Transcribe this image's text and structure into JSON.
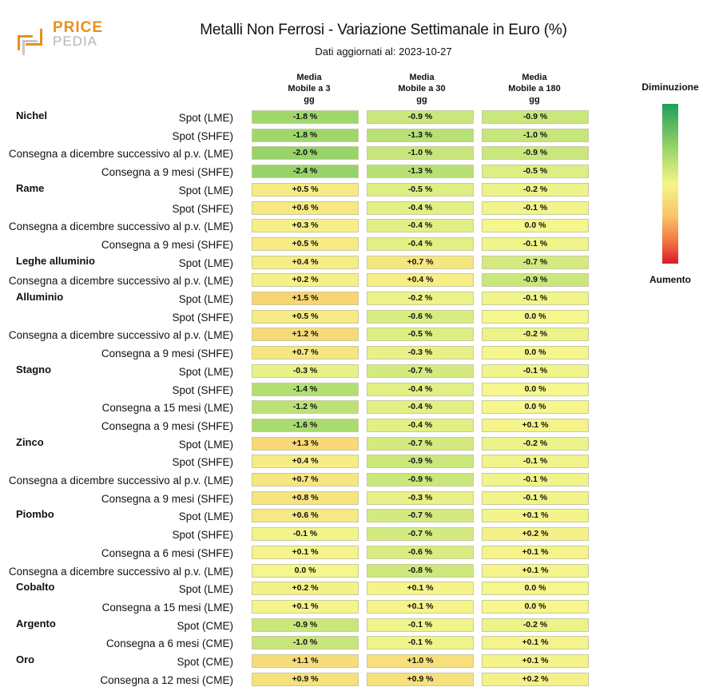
{
  "logo": {
    "word1": "PRICE",
    "word2": "PEDIA"
  },
  "chart_data": {
    "type": "table",
    "title": "Metalli Non Ferrosi - Variazione Settimanale in Euro (%)",
    "subtitle": "Dati aggiornati al: 2023-10-27",
    "columns": [
      "Media\nMobile a 3\ngg",
      "Media\nMobile a 30\ngg",
      "Media\nMobile a 180\ngg"
    ],
    "legend": {
      "top": "Diminuzione",
      "bottom": "Aumento"
    },
    "groups": [
      {
        "name": "Nichel",
        "rows": [
          {
            "label": "Spot (LME)",
            "values": [
              "-1.8 %",
              "-0.9 %",
              "-0.9 %"
            ]
          },
          {
            "label": "Spot (SHFE)",
            "values": [
              "-1.8 %",
              "-1.3 %",
              "-1.0 %"
            ]
          },
          {
            "label": "Consegna a dicembre successivo al p.v. (LME)",
            "values": [
              "-2.0 %",
              "-1.0 %",
              "-0.9 %"
            ]
          },
          {
            "label": "Consegna a 9 mesi (SHFE)",
            "values": [
              "-2.4 %",
              "-1.3 %",
              "-0.5 %"
            ]
          }
        ]
      },
      {
        "name": "Rame",
        "rows": [
          {
            "label": "Spot (LME)",
            "values": [
              "+0.5 %",
              "-0.5 %",
              "-0.2 %"
            ]
          },
          {
            "label": "Spot (SHFE)",
            "values": [
              "+0.6 %",
              "-0.4 %",
              "-0.1 %"
            ]
          },
          {
            "label": "Consegna a dicembre successivo al p.v. (LME)",
            "values": [
              "+0.3 %",
              "-0.4 %",
              "0.0 %"
            ]
          },
          {
            "label": "Consegna a 9 mesi (SHFE)",
            "values": [
              "+0.5 %",
              "-0.4 %",
              "-0.1 %"
            ]
          }
        ]
      },
      {
        "name": "Leghe alluminio",
        "rows": [
          {
            "label": "Spot (LME)",
            "values": [
              "+0.4 %",
              "+0.7 %",
              "-0.7 %"
            ]
          },
          {
            "label": "Consegna a dicembre successivo al p.v. (LME)",
            "values": [
              "+0.2 %",
              "+0.4 %",
              "-0.9 %"
            ]
          }
        ]
      },
      {
        "name": "Alluminio",
        "rows": [
          {
            "label": "Spot (LME)",
            "values": [
              "+1.5 %",
              "-0.2 %",
              "-0.1 %"
            ]
          },
          {
            "label": "Spot (SHFE)",
            "values": [
              "+0.5 %",
              "-0.6 %",
              "0.0 %"
            ]
          },
          {
            "label": "Consegna a dicembre successivo al p.v. (LME)",
            "values": [
              "+1.2 %",
              "-0.5 %",
              "-0.2 %"
            ]
          },
          {
            "label": "Consegna a 9 mesi (SHFE)",
            "values": [
              "+0.7 %",
              "-0.3 %",
              "0.0 %"
            ]
          }
        ]
      },
      {
        "name": "Stagno",
        "rows": [
          {
            "label": "Spot (LME)",
            "values": [
              "-0.3 %",
              "-0.7 %",
              "-0.1 %"
            ]
          },
          {
            "label": "Spot (SHFE)",
            "values": [
              "-1.4 %",
              "-0.4 %",
              "0.0 %"
            ]
          },
          {
            "label": "Consegna a 15 mesi (LME)",
            "values": [
              "-1.2 %",
              "-0.4 %",
              "0.0 %"
            ]
          },
          {
            "label": "Consegna a 9 mesi (SHFE)",
            "values": [
              "-1.6 %",
              "-0.4 %",
              "+0.1 %"
            ]
          }
        ]
      },
      {
        "name": "Zinco",
        "rows": [
          {
            "label": "Spot (LME)",
            "values": [
              "+1.3 %",
              "-0.7 %",
              "-0.2 %"
            ]
          },
          {
            "label": "Spot (SHFE)",
            "values": [
              "+0.4 %",
              "-0.9 %",
              "-0.1 %"
            ]
          },
          {
            "label": "Consegna a dicembre successivo al p.v. (LME)",
            "values": [
              "+0.7 %",
              "-0.9 %",
              "-0.1 %"
            ]
          },
          {
            "label": "Consegna a 9 mesi (SHFE)",
            "values": [
              "+0.8 %",
              "-0.3 %",
              "-0.1 %"
            ]
          }
        ]
      },
      {
        "name": "Piombo",
        "rows": [
          {
            "label": "Spot (LME)",
            "values": [
              "+0.6 %",
              "-0.7 %",
              "+0.1 %"
            ]
          },
          {
            "label": "Spot (SHFE)",
            "values": [
              "-0.1 %",
              "-0.7 %",
              "+0.2 %"
            ]
          },
          {
            "label": "Consegna a 6 mesi (SHFE)",
            "values": [
              "+0.1 %",
              "-0.6 %",
              "+0.1 %"
            ]
          },
          {
            "label": "Consegna a dicembre successivo al p.v. (LME)",
            "values": [
              "0.0 %",
              "-0.8 %",
              "+0.1 %"
            ]
          }
        ]
      },
      {
        "name": "Cobalto",
        "rows": [
          {
            "label": "Spot (LME)",
            "values": [
              "+0.2 %",
              "+0.1 %",
              "0.0 %"
            ]
          },
          {
            "label": "Consegna a 15 mesi (LME)",
            "values": [
              "+0.1 %",
              "+0.1 %",
              "0.0 %"
            ]
          }
        ]
      },
      {
        "name": "Argento",
        "rows": [
          {
            "label": "Spot (CME)",
            "values": [
              "-0.9 %",
              "-0.1 %",
              "-0.2 %"
            ]
          },
          {
            "label": "Consegna a 6 mesi (CME)",
            "values": [
              "-1.0 %",
              "-0.1 %",
              "+0.1 %"
            ]
          }
        ]
      },
      {
        "name": "Oro",
        "rows": [
          {
            "label": "Spot (CME)",
            "values": [
              "+1.1 %",
              "+1.0 %",
              "+0.1 %"
            ]
          },
          {
            "label": "Consegna a 12 mesi (CME)",
            "values": [
              "+0.9 %",
              "+0.9 %",
              "+0.2 %"
            ]
          }
        ]
      }
    ]
  }
}
